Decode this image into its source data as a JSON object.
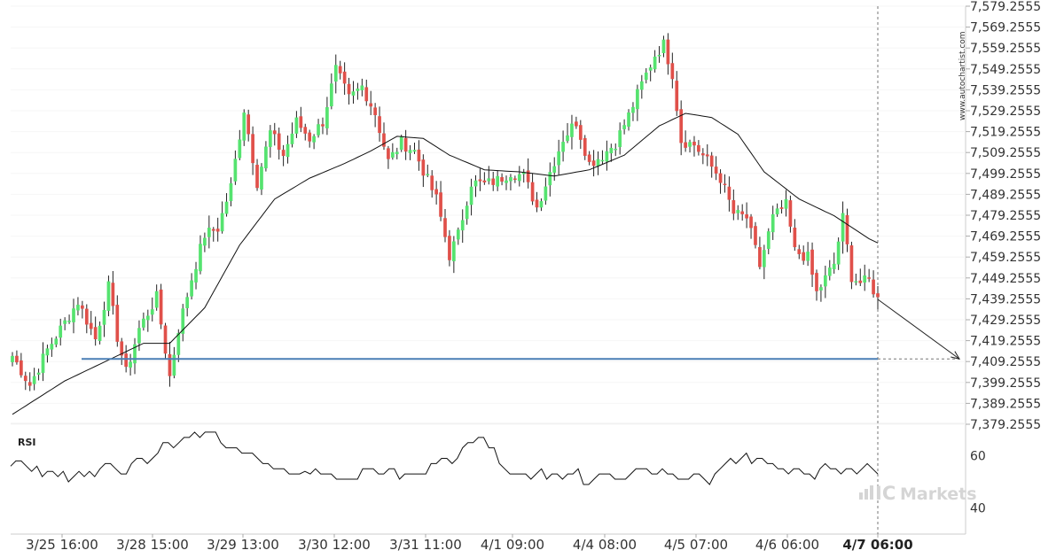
{
  "chart_data": [
    {
      "type": "candlestick",
      "title": "",
      "y_axis": {
        "position": "right",
        "ticks": [
          "7,579.2555",
          "7,569.2555",
          "7,559.2555",
          "7,549.2555",
          "7,539.2555",
          "7,529.2555",
          "7,519.2555",
          "7,509.2555",
          "7,499.2555",
          "7,489.2555",
          "7,479.2555",
          "7,469.2555",
          "7,459.2555",
          "7,449.2555",
          "7,439.2555",
          "7,429.2555",
          "7,419.2555",
          "7,409.2555",
          "7,399.2555",
          "7,389.2555",
          "7,379.2555"
        ],
        "range": [
          7375.2555,
          7580.2555
        ]
      },
      "x_axis": {
        "ticks": [
          "3/25 16:00",
          "3/28 15:00",
          "3/29 13:00",
          "3/30 12:00",
          "3/31 11:00",
          "4/1 09:00",
          "4/4 08:00",
          "4/5 07:00",
          "4/6 06:00",
          "4/7 06:00"
        ],
        "highlighted_tick": "4/7 06:00"
      },
      "candle_anchors_close": [
        {
          "i": 0,
          "v": 7412
        },
        {
          "i": 4,
          "v": 7398
        },
        {
          "i": 8,
          "v": 7415
        },
        {
          "i": 12,
          "v": 7428
        },
        {
          "i": 15,
          "v": 7438
        },
        {
          "i": 19,
          "v": 7420
        },
        {
          "i": 22,
          "v": 7445
        },
        {
          "i": 24,
          "v": 7421
        },
        {
          "i": 26,
          "v": 7404
        },
        {
          "i": 29,
          "v": 7425
        },
        {
          "i": 33,
          "v": 7440
        },
        {
          "i": 36,
          "v": 7402
        },
        {
          "i": 38,
          "v": 7425
        },
        {
          "i": 41,
          "v": 7449
        },
        {
          "i": 44,
          "v": 7470
        },
        {
          "i": 47,
          "v": 7473
        },
        {
          "i": 50,
          "v": 7493
        },
        {
          "i": 53,
          "v": 7530
        },
        {
          "i": 56,
          "v": 7495
        },
        {
          "i": 59,
          "v": 7519
        },
        {
          "i": 62,
          "v": 7508
        },
        {
          "i": 65,
          "v": 7524
        },
        {
          "i": 68,
          "v": 7516
        },
        {
          "i": 71,
          "v": 7524
        },
        {
          "i": 74,
          "v": 7549
        },
        {
          "i": 77,
          "v": 7535
        },
        {
          "i": 80,
          "v": 7541
        },
        {
          "i": 83,
          "v": 7528
        },
        {
          "i": 86,
          "v": 7505
        },
        {
          "i": 89,
          "v": 7514
        },
        {
          "i": 92,
          "v": 7510
        },
        {
          "i": 95,
          "v": 7496
        },
        {
          "i": 97,
          "v": 7487
        },
        {
          "i": 100,
          "v": 7460
        },
        {
          "i": 102,
          "v": 7470
        },
        {
          "i": 105,
          "v": 7495
        },
        {
          "i": 108,
          "v": 7494
        },
        {
          "i": 111,
          "v": 7496
        },
        {
          "i": 114,
          "v": 7500
        },
        {
          "i": 117,
          "v": 7498
        },
        {
          "i": 120,
          "v": 7483
        },
        {
          "i": 123,
          "v": 7500
        },
        {
          "i": 126,
          "v": 7516
        },
        {
          "i": 129,
          "v": 7524
        },
        {
          "i": 132,
          "v": 7504
        },
        {
          "i": 135,
          "v": 7508
        },
        {
          "i": 138,
          "v": 7514
        },
        {
          "i": 141,
          "v": 7527
        },
        {
          "i": 144,
          "v": 7542
        },
        {
          "i": 147,
          "v": 7556
        },
        {
          "i": 149,
          "v": 7561
        },
        {
          "i": 151,
          "v": 7547
        },
        {
          "i": 153,
          "v": 7515
        },
        {
          "i": 156,
          "v": 7513
        },
        {
          "i": 159,
          "v": 7505
        },
        {
          "i": 162,
          "v": 7497
        },
        {
          "i": 165,
          "v": 7480
        },
        {
          "i": 168,
          "v": 7478
        },
        {
          "i": 171,
          "v": 7455
        },
        {
          "i": 174,
          "v": 7478
        },
        {
          "i": 177,
          "v": 7484
        },
        {
          "i": 179,
          "v": 7462
        },
        {
          "i": 182,
          "v": 7459
        },
        {
          "i": 184,
          "v": 7442
        },
        {
          "i": 186,
          "v": 7449
        },
        {
          "i": 188,
          "v": 7456
        },
        {
          "i": 190,
          "v": 7478
        },
        {
          "i": 192,
          "v": 7450
        },
        {
          "i": 194,
          "v": 7447
        },
        {
          "i": 196,
          "v": 7448
        },
        {
          "i": 198,
          "v": 7439
        }
      ],
      "candle_count": 199,
      "colors": {
        "bull": "#55e36f",
        "bear": "#e0504a",
        "wick": "#222222",
        "moving_average": "#111111"
      },
      "moving_average_anchors": [
        {
          "i": 0,
          "v": 7384
        },
        {
          "i": 12,
          "v": 7400
        },
        {
          "i": 22,
          "v": 7410
        },
        {
          "i": 30,
          "v": 7418
        },
        {
          "i": 36,
          "v": 7418
        },
        {
          "i": 44,
          "v": 7435
        },
        {
          "i": 52,
          "v": 7465
        },
        {
          "i": 60,
          "v": 7487
        },
        {
          "i": 68,
          "v": 7497
        },
        {
          "i": 76,
          "v": 7504
        },
        {
          "i": 82,
          "v": 7510
        },
        {
          "i": 88,
          "v": 7517
        },
        {
          "i": 94,
          "v": 7516
        },
        {
          "i": 100,
          "v": 7508
        },
        {
          "i": 108,
          "v": 7501
        },
        {
          "i": 116,
          "v": 7500
        },
        {
          "i": 124,
          "v": 7498
        },
        {
          "i": 132,
          "v": 7501
        },
        {
          "i": 140,
          "v": 7508
        },
        {
          "i": 148,
          "v": 7522
        },
        {
          "i": 154,
          "v": 7528
        },
        {
          "i": 160,
          "v": 7526
        },
        {
          "i": 166,
          "v": 7518
        },
        {
          "i": 172,
          "v": 7500
        },
        {
          "i": 180,
          "v": 7487
        },
        {
          "i": 188,
          "v": 7479
        },
        {
          "i": 196,
          "v": 7468
        },
        {
          "i": 198,
          "v": 7466
        }
      ],
      "support_level": {
        "value": 7410.5,
        "color": "#4a7fb5"
      },
      "projection_arrow": {
        "from_index": 198,
        "from_value": 7439,
        "to_value": 7410.5
      },
      "watermark": "www.autochartist.com"
    },
    {
      "type": "line",
      "title": "RSI",
      "y_axis": {
        "ticks": [
          "60",
          "40"
        ],
        "range": [
          30,
          70
        ]
      },
      "series": [
        {
          "name": "RSI",
          "values": [
            56,
            58,
            58,
            56,
            54,
            56,
            52,
            54,
            54,
            52,
            54,
            50,
            52,
            54,
            52,
            54,
            52,
            55,
            57,
            57,
            55,
            53,
            53,
            57,
            59,
            59,
            57,
            59,
            61,
            65,
            65,
            63,
            65,
            67,
            67,
            69,
            67,
            69,
            69,
            69,
            65,
            63,
            63,
            63,
            61,
            61,
            61,
            59,
            57,
            57,
            55,
            55,
            55,
            53,
            53,
            53,
            54,
            53,
            55,
            53,
            53,
            53,
            51,
            51,
            51,
            51,
            51,
            55,
            55,
            55,
            53,
            53,
            55,
            55,
            51,
            53,
            53,
            53,
            53,
            53,
            57,
            57,
            59,
            59,
            57,
            59,
            63,
            65,
            65,
            67,
            67,
            63,
            63,
            57,
            55,
            53,
            53,
            53,
            53,
            51,
            53,
            55,
            51,
            53,
            53,
            51,
            53,
            53,
            55,
            49,
            49,
            51,
            53,
            53,
            53,
            51,
            51,
            51,
            53,
            55,
            55,
            55,
            53,
            53,
            55,
            53,
            53,
            51,
            51,
            51,
            53,
            53,
            51,
            49,
            53,
            55,
            57,
            59,
            57,
            59,
            61,
            57,
            59,
            59,
            57,
            57,
            55,
            55,
            53,
            55,
            55,
            53,
            53,
            51,
            55,
            57,
            55,
            55,
            53,
            55,
            55,
            53,
            55,
            57,
            55,
            53
          ]
        }
      ],
      "color": "#111111"
    }
  ],
  "branding": {
    "logo_ic": "IC",
    "logo_text": "Markets"
  }
}
